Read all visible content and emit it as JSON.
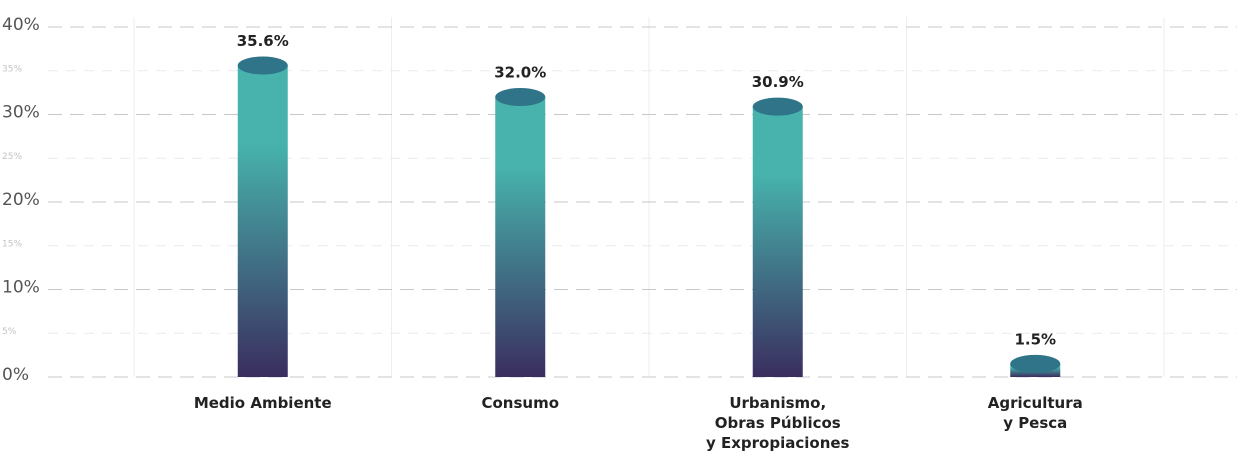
{
  "chart_data": {
    "type": "bar",
    "categories": [
      "Medio Ambiente",
      "Consumo",
      "Urbanismo,\nObras Públicos\ny Expropiaciones",
      "Agricultura\ny Pesca"
    ],
    "values": [
      35.6,
      32.0,
      30.9,
      1.5
    ],
    "value_labels": [
      "35.6%",
      "32.0%",
      "30.9%",
      "1.5%"
    ],
    "color_top": "#47b3ac",
    "color_bottom": "#3a2e5f",
    "ylim": [
      0,
      40
    ],
    "yticks": [
      {
        "value": 0,
        "label": "0%"
      },
      {
        "value": 10,
        "label": "10%"
      },
      {
        "value": 20,
        "label": "20%"
      },
      {
        "value": 30,
        "label": "30%"
      },
      {
        "value": 40,
        "label": "40%"
      }
    ],
    "minor_yticks": [
      {
        "value": 5,
        "label": "5%"
      },
      {
        "value": 15,
        "label": "15%"
      },
      {
        "value": 25,
        "label": "25%"
      },
      {
        "value": 35,
        "label": "35%"
      }
    ],
    "grid": true
  }
}
